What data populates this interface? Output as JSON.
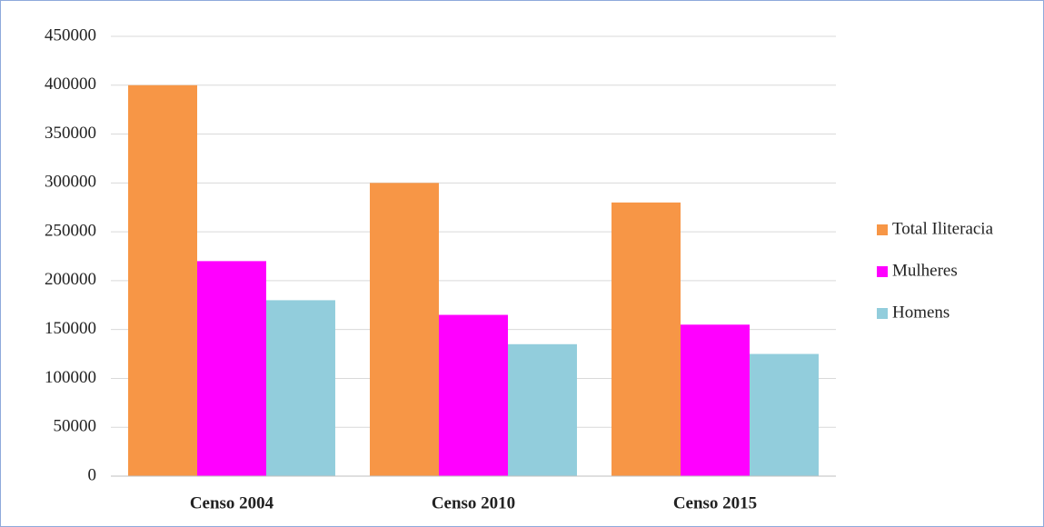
{
  "chart_data": {
    "type": "bar",
    "categories": [
      "Censo 2004",
      "Censo 2010",
      "Censo 2015"
    ],
    "series": [
      {
        "name": "Total Iliteracia",
        "color": "#f79646",
        "values": [
          400000,
          300000,
          280000
        ]
      },
      {
        "name": "Mulheres",
        "color": "#ff00ff",
        "values": [
          220000,
          165000,
          155000
        ]
      },
      {
        "name": "Homens",
        "color": "#92cddc",
        "values": [
          180000,
          135000,
          125000
        ]
      }
    ],
    "ylim": [
      0,
      450000
    ],
    "yticks": [
      0,
      50000,
      100000,
      150000,
      200000,
      250000,
      300000,
      350000,
      400000,
      450000
    ],
    "grid": true,
    "legend": "right"
  }
}
